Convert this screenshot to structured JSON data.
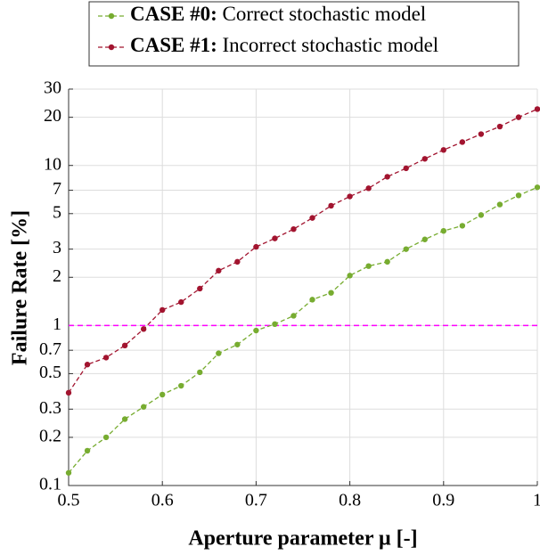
{
  "chart_data": {
    "type": "line",
    "xlabel": "Aperture parameter μ [-]",
    "ylabel": "Failure Rate [%]",
    "x": [
      0.5,
      0.52,
      0.54,
      0.56,
      0.58,
      0.6,
      0.62,
      0.64,
      0.66,
      0.68,
      0.7,
      0.72,
      0.74,
      0.76,
      0.78,
      0.8,
      0.82,
      0.84,
      0.86,
      0.88,
      0.9,
      0.92,
      0.94,
      0.96,
      0.98,
      1.0
    ],
    "series": [
      {
        "name": "CASE #0: Correct stochastic model",
        "color": "#77ac30",
        "values": [
          0.12,
          0.165,
          0.2,
          0.26,
          0.31,
          0.37,
          0.42,
          0.51,
          0.67,
          0.76,
          0.93,
          1.02,
          1.15,
          1.45,
          1.6,
          2.05,
          2.35,
          2.5,
          3.0,
          3.45,
          3.9,
          4.2,
          4.9,
          5.7,
          6.5,
          7.3
        ]
      },
      {
        "name": "CASE #1: Incorrect stochastic model",
        "color": "#a2142f",
        "values": [
          0.38,
          0.57,
          0.63,
          0.75,
          0.95,
          1.25,
          1.4,
          1.7,
          2.2,
          2.5,
          3.1,
          3.5,
          4.0,
          4.7,
          5.6,
          6.4,
          7.2,
          8.5,
          9.6,
          11,
          12.5,
          14,
          15.7,
          17.5,
          20,
          22.5
        ]
      }
    ],
    "reference_line": {
      "y": 1,
      "color": "#ff00ff"
    },
    "xlim": [
      0.5,
      1
    ],
    "xticks": [
      0.5,
      0.6,
      0.7,
      0.8,
      0.9,
      1
    ],
    "ylim": [
      0.1,
      30
    ],
    "yticks": [
      0.1,
      0.2,
      0.3,
      0.5,
      0.7,
      1,
      2,
      3,
      5,
      7,
      10,
      20,
      30
    ],
    "log_y": true,
    "grid": true
  }
}
